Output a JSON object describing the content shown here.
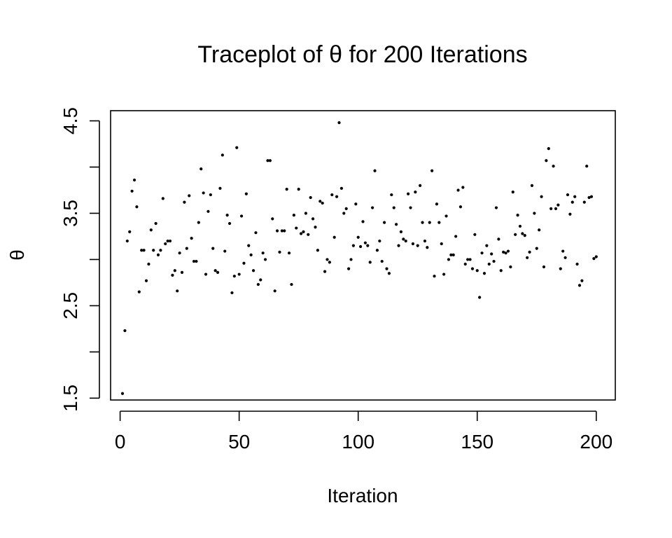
{
  "chart_data": {
    "type": "scatter",
    "title": "Traceplot of θ for 200 Iterations",
    "xlabel": "Iteration",
    "ylabel": "θ",
    "xlim": [
      -4,
      208
    ],
    "ylim": [
      1.48,
      4.61
    ],
    "x_ticks": [
      0,
      50,
      100,
      150,
      200
    ],
    "x_tick_labels": [
      "0",
      "50",
      "100",
      "150",
      "200"
    ],
    "y_ticks": [
      1.5,
      2.0,
      2.5,
      3.0,
      3.5,
      4.0,
      4.5
    ],
    "y_tick_labels": [
      "1.5",
      "",
      "2.5",
      "",
      "3.5",
      "",
      "4.5"
    ],
    "grid": false,
    "legend": "none",
    "point_color": "#000000",
    "x": [
      1,
      2,
      3,
      4,
      5,
      6,
      7,
      8,
      9,
      10,
      11,
      12,
      13,
      14,
      15,
      16,
      17,
      18,
      19,
      20,
      21,
      22,
      23,
      24,
      25,
      26,
      27,
      28,
      29,
      30,
      31,
      32,
      33,
      34,
      35,
      36,
      37,
      38,
      39,
      40,
      41,
      42,
      43,
      44,
      45,
      46,
      47,
      48,
      49,
      50,
      51,
      52,
      53,
      54,
      55,
      56,
      57,
      58,
      59,
      60,
      61,
      62,
      63,
      64,
      65,
      66,
      67,
      68,
      69,
      70,
      71,
      72,
      73,
      74,
      75,
      76,
      77,
      78,
      79,
      80,
      81,
      82,
      83,
      84,
      85,
      86,
      87,
      88,
      89,
      90,
      91,
      92,
      93,
      94,
      95,
      96,
      97,
      98,
      99,
      100,
      101,
      102,
      103,
      104,
      105,
      106,
      107,
      108,
      109,
      110,
      111,
      112,
      113,
      114,
      115,
      116,
      117,
      118,
      119,
      120,
      121,
      122,
      123,
      124,
      125,
      126,
      127,
      128,
      129,
      130,
      131,
      132,
      133,
      134,
      135,
      136,
      137,
      138,
      139,
      140,
      141,
      142,
      143,
      144,
      145,
      146,
      147,
      148,
      149,
      150,
      151,
      152,
      153,
      154,
      155,
      156,
      157,
      158,
      159,
      160,
      161,
      162,
      163,
      164,
      165,
      166,
      167,
      168,
      169,
      170,
      171,
      172,
      173,
      174,
      175,
      176,
      177,
      178,
      179,
      180,
      181,
      182,
      183,
      184,
      185,
      186,
      187,
      188,
      189,
      190,
      191,
      192,
      193,
      194,
      195,
      196,
      197,
      198,
      199,
      200
    ],
    "values": [
      1.55,
      2.23,
      3.2,
      3.3,
      3.74,
      3.86,
      3.57,
      2.65,
      3.1,
      3.1,
      2.77,
      2.95,
      3.32,
      3.1,
      3.39,
      3.05,
      3.1,
      3.66,
      3.17,
      3.2,
      3.2,
      2.83,
      2.88,
      2.66,
      3.07,
      2.86,
      3.62,
      3.12,
      3.69,
      3.23,
      2.98,
      2.98,
      3.4,
      3.98,
      3.72,
      2.84,
      3.52,
      3.7,
      3.12,
      2.88,
      2.86,
      3.77,
      4.13,
      3.09,
      3.48,
      3.39,
      2.64,
      2.82,
      4.21,
      2.84,
      3.47,
      2.96,
      3.71,
      3.15,
      3.05,
      2.88,
      3.29,
      2.73,
      2.78,
      3.07,
      3.0,
      4.07,
      4.07,
      3.44,
      2.66,
      3.31,
      3.08,
      3.31,
      3.31,
      3.76,
      3.07,
      2.73,
      3.48,
      3.34,
      3.76,
      3.28,
      3.3,
      3.5,
      3.27,
      3.67,
      3.44,
      3.35,
      3.1,
      3.63,
      3.61,
      2.87,
      3.0,
      2.97,
      3.7,
      3.24,
      3.68,
      4.48,
      3.77,
      3.5,
      3.55,
      2.9,
      3.0,
      3.15,
      3.6,
      3.24,
      3.14,
      3.41,
      3.18,
      3.15,
      2.97,
      3.56,
      3.96,
      3.1,
      3.2,
      2.98,
      3.4,
      2.9,
      2.85,
      3.7,
      3.56,
      3.38,
      3.15,
      3.3,
      3.22,
      3.2,
      3.71,
      3.56,
      3.17,
      3.73,
      3.15,
      3.8,
      3.4,
      3.2,
      3.13,
      3.4,
      3.96,
      2.82,
      3.6,
      3.4,
      3.17,
      2.84,
      3.47,
      3.0,
      3.05,
      3.05,
      3.25,
      3.75,
      3.57,
      3.78,
      2.95,
      3.0,
      3.0,
      2.9,
      3.27,
      2.88,
      2.59,
      3.07,
      2.85,
      3.15,
      2.95,
      3.06,
      2.98,
      3.56,
      3.22,
      2.88,
      3.08,
      3.07,
      3.09,
      2.92,
      3.73,
      3.27,
      3.48,
      3.36,
      3.28,
      3.26,
      3.02,
      3.08,
      3.8,
      3.5,
      3.12,
      3.32,
      3.68,
      2.92,
      4.07,
      4.2,
      3.55,
      4.01,
      3.55,
      3.59,
      2.9,
      3.09,
      3.02,
      3.7,
      3.49,
      3.62,
      3.68,
      2.95,
      2.72,
      2.77,
      3.62,
      4.01,
      3.67,
      3.68,
      3.01,
      3.03
    ]
  }
}
